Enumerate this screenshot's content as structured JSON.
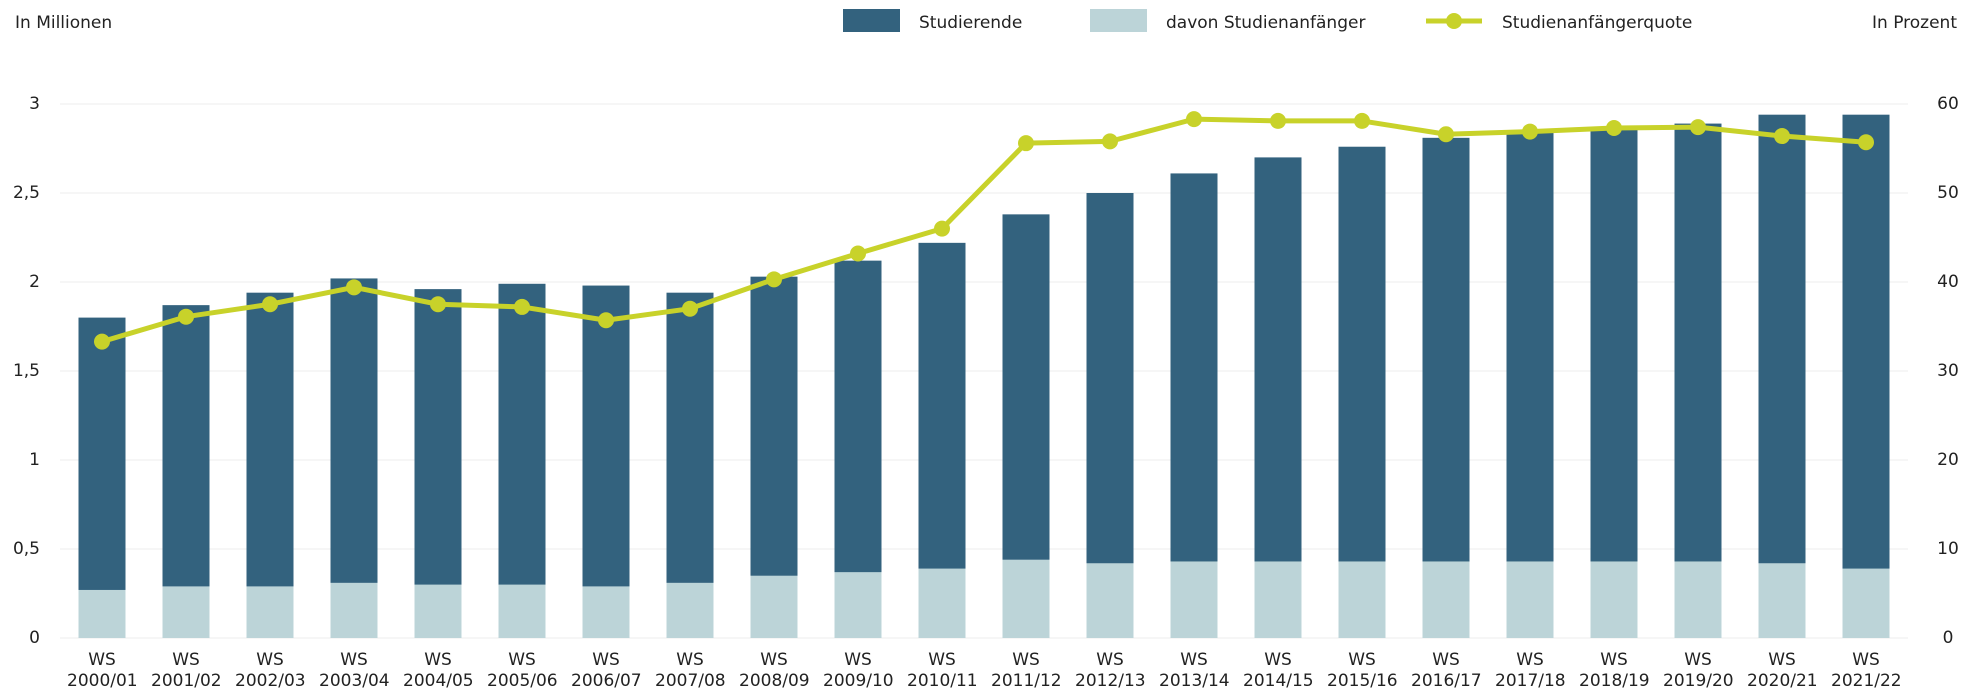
{
  "chart_data": {
    "type": "bar",
    "y_label": "In Millionen",
    "y2_label": "In Prozent",
    "categories": [
      "WS 2000/01",
      "WS 2001/02",
      "WS 2002/03",
      "WS 2003/04",
      "WS 2004/05",
      "WS 2005/06",
      "WS 2006/07",
      "WS 2007/08",
      "WS 2008/09",
      "WS 2009/10",
      "WS 2010/11",
      "WS 2011/12",
      "WS 2012/13",
      "WS 2013/14",
      "WS 2014/15",
      "WS 2015/16",
      "WS 2016/17",
      "WS 2017/18",
      "WS 2018/19",
      "WS 2019/20",
      "WS 2020/21",
      "WS 2021/22"
    ],
    "series": [
      {
        "name": "Studierende",
        "color": "#33627e",
        "type": "bar",
        "values": [
          1.8,
          1.87,
          1.94,
          2.02,
          1.96,
          1.99,
          1.98,
          1.94,
          2.03,
          2.12,
          2.22,
          2.38,
          2.5,
          2.61,
          2.7,
          2.76,
          2.81,
          2.85,
          2.87,
          2.89,
          2.94,
          2.94
        ]
      },
      {
        "name": "davon Studienanfänger",
        "color": "#bcd4d8",
        "type": "bar",
        "values": [
          0.27,
          0.29,
          0.29,
          0.31,
          0.3,
          0.3,
          0.29,
          0.31,
          0.35,
          0.37,
          0.39,
          0.44,
          0.42,
          0.43,
          0.43,
          0.43,
          0.43,
          0.43,
          0.43,
          0.43,
          0.42,
          0.39
        ]
      },
      {
        "name": "Studienanfängerquote",
        "color": "#c8d22a",
        "type": "line",
        "axis": "y2",
        "values": [
          33.3,
          36.1,
          37.5,
          39.4,
          37.5,
          37.2,
          35.7,
          37.0,
          40.3,
          43.2,
          46.0,
          55.6,
          55.8,
          58.3,
          58.1,
          58.1,
          56.6,
          56.9,
          57.3,
          57.4,
          56.4,
          55.7
        ]
      }
    ],
    "ylim": [
      0,
      3
    ],
    "yticks": [
      0,
      {
        "value": 0.5,
        "label": "0,5"
      },
      1,
      {
        "value": 1.5,
        "label": "1,5"
      },
      2,
      {
        "value": 2.5,
        "label": "2,5"
      },
      3
    ],
    "y2lim": [
      0,
      60
    ],
    "y2ticks": [
      0,
      10,
      20,
      30,
      40,
      50,
      60
    ],
    "grid": true,
    "legend": "top"
  }
}
